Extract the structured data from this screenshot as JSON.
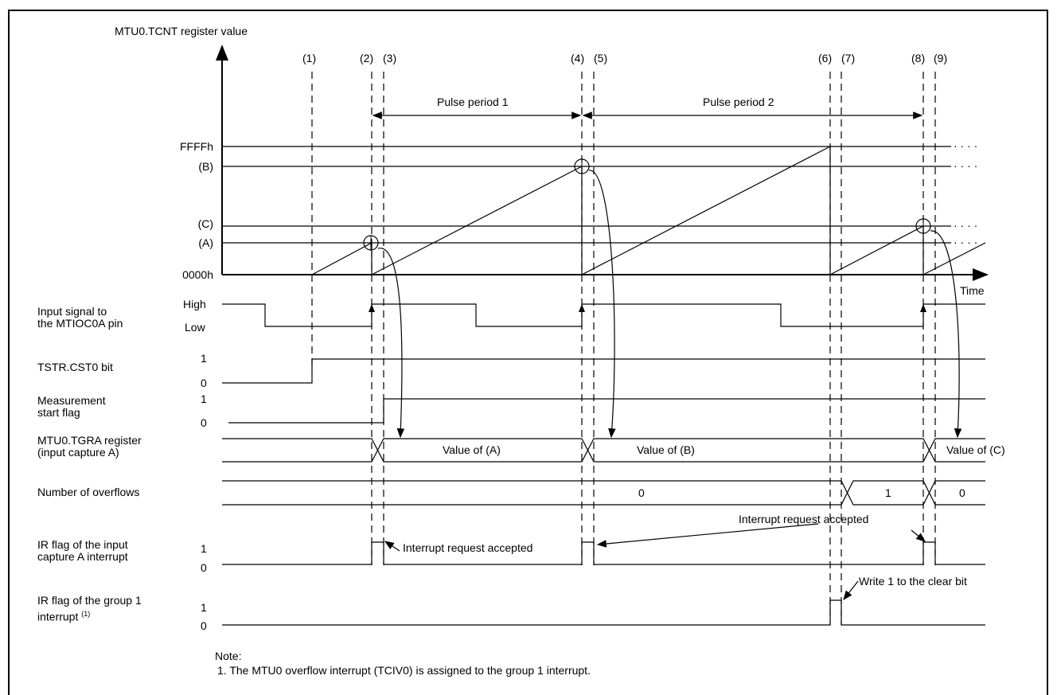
{
  "diagram": {
    "y_axis_title": "MTU0.TCNT register value",
    "time_label": "Time",
    "markers": [
      "(1)",
      "(2)",
      "(3)",
      "(4)",
      "(5)",
      "(6)",
      "(7)",
      "(8)",
      "(9)"
    ],
    "levels": {
      "ffff": "FFFFh",
      "b": "(B)",
      "c": "(C)",
      "a": "(A)",
      "zero": "0000h"
    },
    "pulse_periods": [
      "Pulse period 1",
      "Pulse period 2"
    ],
    "signals": {
      "input_signal": {
        "label_line1": "Input signal to",
        "label_line2": "the MTIOC0A pin",
        "high": "High",
        "low": "Low"
      },
      "tstr": {
        "label": "TSTR.CST0 bit",
        "one": "1",
        "zero": "0"
      },
      "meas_flag": {
        "label_line1": "Measurement",
        "label_line2": "start flag",
        "one": "1",
        "zero": "0"
      },
      "tgra": {
        "label_line1": "MTU0.TGRA register",
        "label_line2": "(input capture A)",
        "values": [
          "Value of (A)",
          "Value of (B)",
          "Value of (C)"
        ]
      },
      "overflows": {
        "label": "Number of overflows",
        "values": [
          "0",
          "1",
          "0"
        ]
      },
      "ir_capture": {
        "label_line1": "IR flag of the input",
        "label_line2": "capture A interrupt",
        "one": "1",
        "zero": "0"
      },
      "ir_group1": {
        "label_line1": "IR flag of the group 1",
        "label_line2": "interrupt",
        "superscript": "(1)",
        "one": "1",
        "zero": "0"
      }
    },
    "annotations": {
      "interrupt_accepted_1": "Interrupt request accepted",
      "interrupt_accepted_2": "Interrupt request accepted",
      "write_clear": "Write 1 to the clear bit"
    },
    "note": {
      "title": "Note:",
      "line1": "1. The MTU0 overflow interrupt (TCIV0) is assigned to the group 1 interrupt."
    },
    "dots": "· · · ·"
  }
}
